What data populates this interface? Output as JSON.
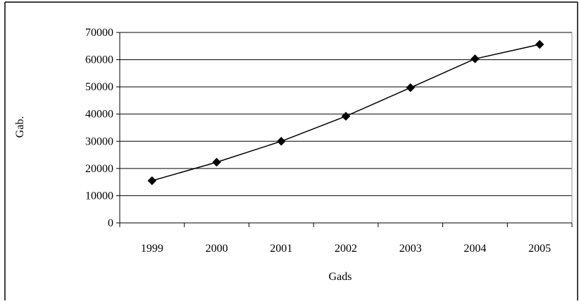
{
  "chart_data": {
    "type": "line",
    "title": "",
    "xlabel": "Gads",
    "ylabel": "Gab.",
    "categories": [
      "1999",
      "2000",
      "2001",
      "2002",
      "2003",
      "2004",
      "2005"
    ],
    "series": [
      {
        "values": [
          15500,
          22300,
          30000,
          39200,
          49700,
          60300,
          65600
        ]
      }
    ],
    "ylim": [
      0,
      70000
    ],
    "yticks": [
      "0",
      "10000",
      "20000",
      "30000",
      "40000",
      "50000",
      "60000",
      "70000"
    ],
    "grid": true,
    "legend": "none",
    "marker": "diamond",
    "line_color": "#000000"
  }
}
